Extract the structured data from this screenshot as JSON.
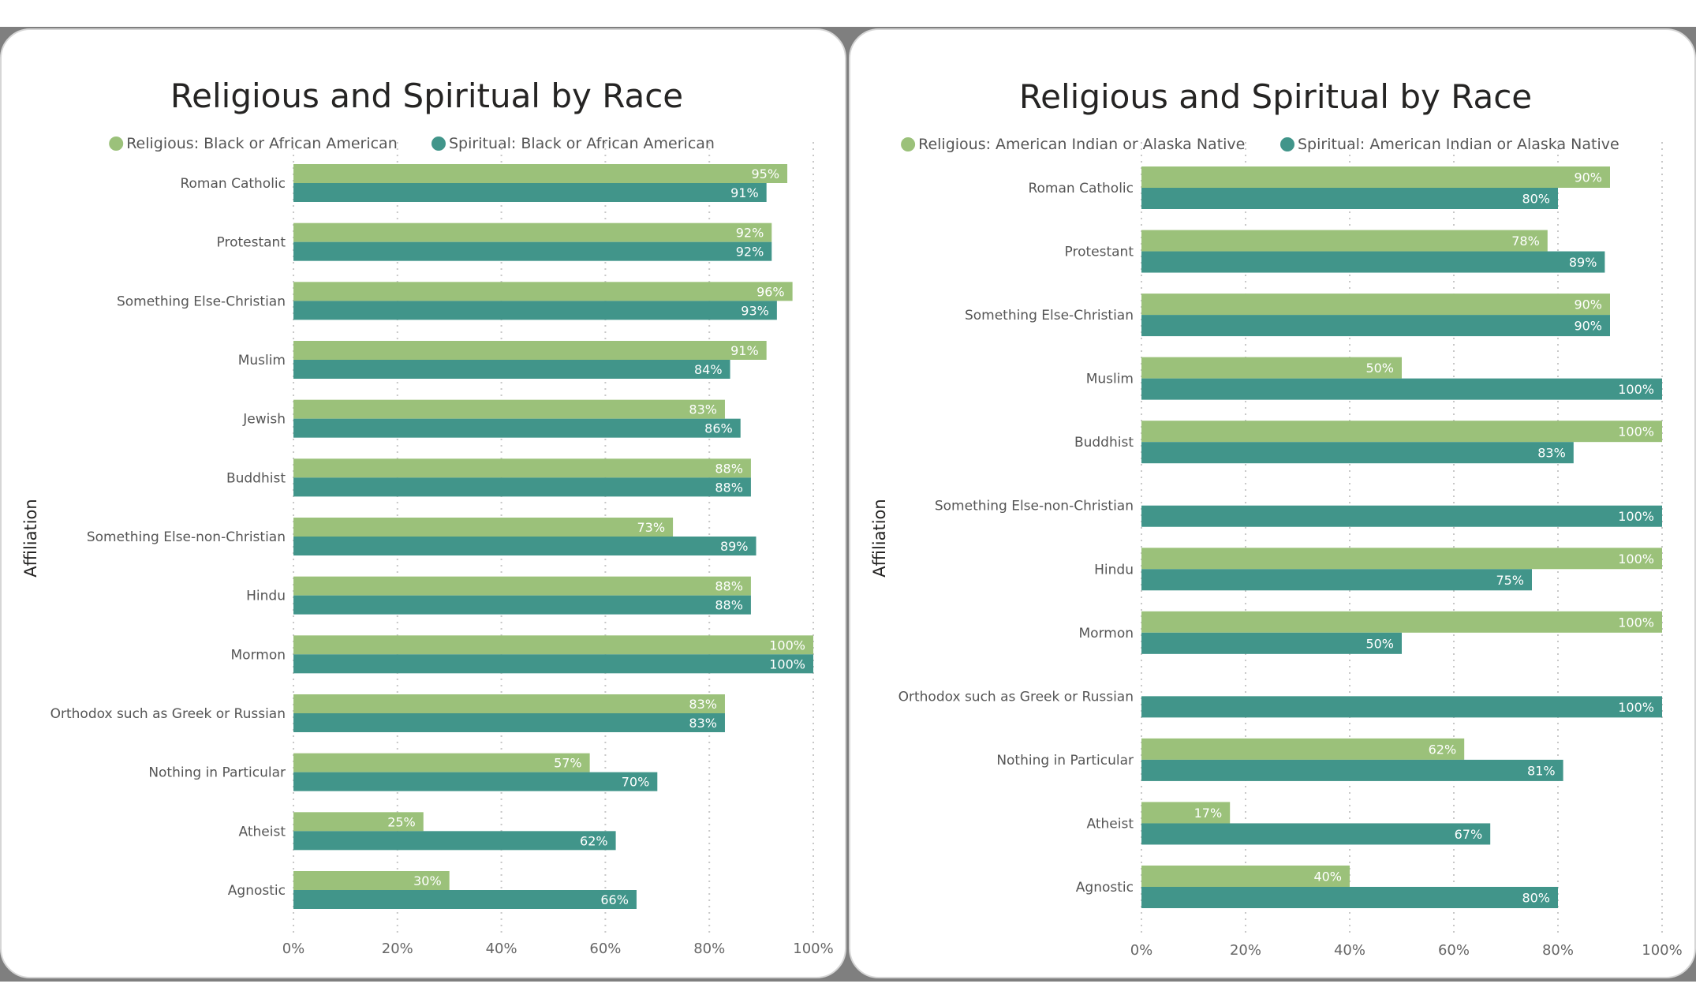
{
  "colors": {
    "religious": "#9bc17a",
    "spiritual": "#41958a"
  },
  "chart_data": [
    {
      "type": "bar",
      "orientation": "horizontal",
      "title": "Religious and Spiritual by Race",
      "ylabel": "Affiliation",
      "xlim": [
        0,
        100
      ],
      "x_ticks": [
        "0%",
        "20%",
        "40%",
        "60%",
        "80%",
        "100%"
      ],
      "grid": true,
      "legend_position": "top",
      "categories": [
        "Roman Catholic",
        "Protestant",
        "Something Else-Christian",
        "Muslim",
        "Jewish",
        "Buddhist",
        "Something Else-non-Christian",
        "Hindu",
        "Mormon",
        "Orthodox such as Greek or Russian",
        "Nothing in Particular",
        "Atheist",
        "Agnostic"
      ],
      "series": [
        {
          "name": "Religious: Black or African American",
          "color": "#9bc17a",
          "values": [
            95,
            92,
            96,
            91,
            83,
            88,
            73,
            88,
            100,
            83,
            57,
            25,
            30
          ],
          "labels": [
            "95%",
            "92%",
            "96%",
            "91%",
            "83%",
            "88%",
            "73%",
            "88%",
            "100%",
            "83%",
            "57%",
            "25%",
            "30%"
          ]
        },
        {
          "name": "Spiritual: Black or African American",
          "color": "#41958a",
          "values": [
            91,
            92,
            93,
            84,
            86,
            88,
            89,
            88,
            100,
            83,
            70,
            62,
            66
          ],
          "labels": [
            "91%",
            "92%",
            "93%",
            "84%",
            "86%",
            "88%",
            "89%",
            "88%",
            "100%",
            "83%",
            "70%",
            "62%",
            "66%"
          ]
        }
      ]
    },
    {
      "type": "bar",
      "orientation": "horizontal",
      "title": "Religious and Spiritual by Race",
      "ylabel": "Affiliation",
      "xlim": [
        0,
        100
      ],
      "x_ticks": [
        "0%",
        "20%",
        "40%",
        "60%",
        "80%",
        "100%"
      ],
      "grid": true,
      "legend_position": "top",
      "categories": [
        "Roman Catholic",
        "Protestant",
        "Something Else-Christian",
        "Muslim",
        "Buddhist",
        "Something Else-non-Christian",
        "Hindu",
        "Mormon",
        "Orthodox such as Greek or Russian",
        "Nothing in Particular",
        "Atheist",
        "Agnostic"
      ],
      "series": [
        {
          "name": "Religious: American Indian or Alaska Native",
          "color": "#9bc17a",
          "values": [
            90,
            78,
            90,
            50,
            100,
            null,
            100,
            100,
            null,
            62,
            17,
            40
          ],
          "labels": [
            "90%",
            "78%",
            "90%",
            "50%",
            "100%",
            null,
            "100%",
            "100%",
            null,
            "62%",
            "17%",
            "40%"
          ]
        },
        {
          "name": "Spiritual: American Indian or Alaska Native",
          "color": "#41958a",
          "values": [
            80,
            89,
            90,
            100,
            83,
            100,
            75,
            50,
            100,
            81,
            67,
            80
          ],
          "labels": [
            "80%",
            "89%",
            "90%",
            "100%",
            "83%",
            "100%",
            "75%",
            "50%",
            "100%",
            "81%",
            "67%",
            "80%"
          ]
        }
      ]
    }
  ]
}
